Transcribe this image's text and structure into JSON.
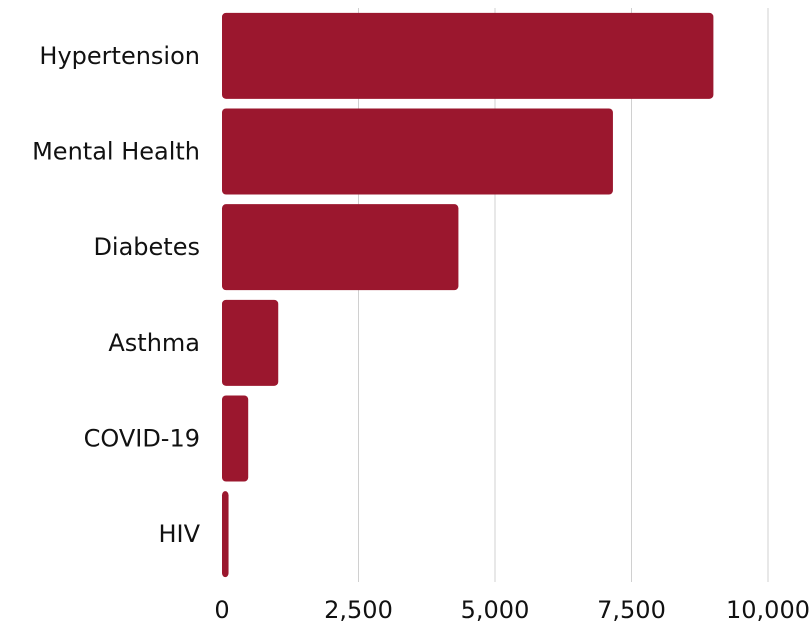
{
  "colors": {
    "bar": "#9B172E",
    "grid": "#D0D0D0",
    "text": "#111111"
  },
  "chart_data": {
    "type": "bar",
    "orientation": "horizontal",
    "title": "",
    "xlabel": "",
    "ylabel": "",
    "categories": [
      "Hypertension",
      "Mental Health",
      "Diabetes",
      "Asthma",
      "COVID-19",
      "HIV"
    ],
    "values": [
      9000,
      7160,
      4330,
      1030,
      480,
      120
    ],
    "xlim": [
      0,
      10000
    ],
    "x_ticks": [
      0,
      2500,
      5000,
      7500,
      10000
    ],
    "x_tick_labels": [
      "0",
      "2,500",
      "5,000",
      "7,500",
      "10,000"
    ],
    "grid": "vertical",
    "legend": "none"
  }
}
